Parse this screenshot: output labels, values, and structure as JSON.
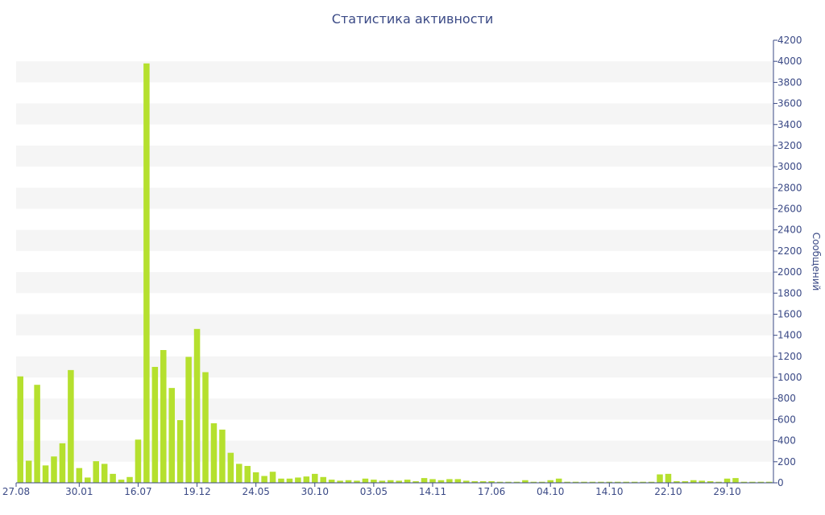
{
  "chart_data": {
    "type": "bar",
    "title": "Статистика активности",
    "xlabel": "",
    "ylabel": "Сообщений",
    "y_axis_side": "right",
    "ylim": [
      0,
      4200
    ],
    "y_ticks": [
      0,
      200,
      400,
      600,
      800,
      1000,
      1200,
      1400,
      1600,
      1800,
      2000,
      2200,
      2400,
      2600,
      2800,
      3000,
      3200,
      3400,
      3600,
      3800,
      4000,
      4200
    ],
    "x_tick_labels": [
      {
        "label": "27.08",
        "index": 0
      },
      {
        "label": "30.01",
        "index": 7
      },
      {
        "label": "16.07",
        "index": 14
      },
      {
        "label": "19.12",
        "index": 21
      },
      {
        "label": "24.05",
        "index": 28
      },
      {
        "label": "30.10",
        "index": 35
      },
      {
        "label": "03.05",
        "index": 42
      },
      {
        "label": "14.11",
        "index": 49
      },
      {
        "label": "17.06",
        "index": 56
      },
      {
        "label": "04.10",
        "index": 63
      },
      {
        "label": "14.10",
        "index": 70
      },
      {
        "label": "22.10",
        "index": 77
      },
      {
        "label": "29.10",
        "index": 84
      }
    ],
    "grid": "alternating horizontal bands",
    "legend": "none",
    "colors": {
      "bar": "#b5e02e",
      "band": "#f5f5f5",
      "text": "#3b4a86",
      "axis": "#3b4a86"
    },
    "values": [
      1010,
      210,
      930,
      165,
      250,
      375,
      1070,
      140,
      50,
      205,
      180,
      85,
      30,
      55,
      410,
      3980,
      1100,
      1260,
      900,
      595,
      1195,
      1460,
      1050,
      565,
      505,
      285,
      180,
      160,
      100,
      65,
      105,
      40,
      40,
      50,
      60,
      85,
      55,
      30,
      20,
      25,
      20,
      40,
      30,
      20,
      25,
      20,
      30,
      15,
      45,
      35,
      25,
      35,
      35,
      20,
      15,
      15,
      15,
      10,
      10,
      10,
      25,
      10,
      10,
      25,
      40,
      10,
      10,
      10,
      10,
      10,
      10,
      10,
      10,
      10,
      10,
      10,
      80,
      85,
      15,
      15,
      25,
      20,
      15,
      10,
      40,
      45,
      10,
      10,
      10,
      10
    ]
  }
}
